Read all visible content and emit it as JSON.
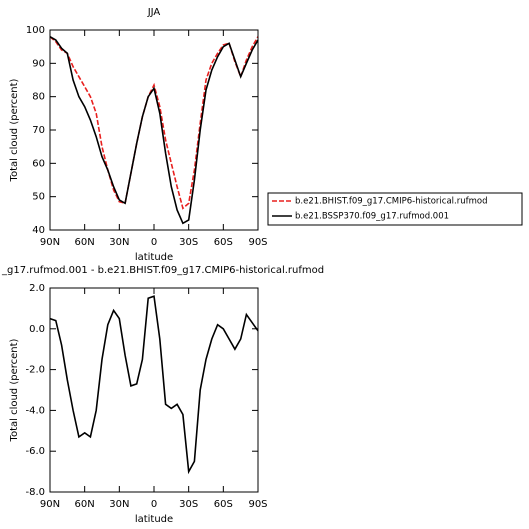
{
  "chart_data": [
    {
      "type": "line",
      "title": "JJA",
      "ylabel": "Total cloud (percent)",
      "xlabel": "latitude",
      "x": [
        90,
        85,
        80,
        75,
        70,
        65,
        60,
        55,
        50,
        45,
        40,
        35,
        30,
        25,
        20,
        15,
        10,
        5,
        0,
        -5,
        -10,
        -15,
        -20,
        -25,
        -30,
        -35,
        -40,
        -45,
        -50,
        -55,
        -60,
        -65,
        -70,
        -75,
        -80,
        -85,
        -90
      ],
      "series": [
        {
          "name": "b.e21.BHIST.f09_g17.CMIP6-historical.rufmod",
          "color": "#e8201f",
          "linestyle": "dashed",
          "values": [
            98,
            96.5,
            94,
            93,
            89,
            86,
            83,
            80,
            75,
            65,
            58,
            52,
            48.5,
            48,
            57,
            66,
            74,
            80,
            83.5,
            77,
            67,
            60,
            53,
            46.5,
            48,
            58,
            72,
            85,
            90,
            93,
            95.5,
            96,
            90.5,
            86,
            91,
            95,
            98
          ]
        },
        {
          "name": "b.e21.BSSP370.f09_g17.rufmod.001",
          "color": "#000000",
          "linestyle": "solid",
          "values": [
            98,
            97,
            94.5,
            93,
            85,
            80,
            77,
            73,
            68,
            62,
            58,
            53,
            49,
            48,
            57,
            66,
            74,
            80,
            82.5,
            75,
            63,
            53,
            46,
            42,
            43,
            55,
            70,
            82,
            88,
            92,
            95,
            96,
            91,
            86,
            90,
            94,
            97
          ]
        }
      ],
      "xlim": [
        90,
        -90
      ],
      "xticks": [
        {
          "value": 90,
          "label": "90N"
        },
        {
          "value": 60,
          "label": "60N"
        },
        {
          "value": 30,
          "label": "30N"
        },
        0,
        {
          "value": -30,
          "label": "30S"
        },
        {
          "value": -60,
          "label": "60S"
        },
        {
          "value": -90,
          "label": "90S"
        }
      ],
      "ylim": [
        40,
        100
      ],
      "yticks": [
        40,
        50,
        60,
        70,
        80,
        90,
        100
      ],
      "legend": "outside-right"
    },
    {
      "type": "line",
      "title": "_g17.rufmod.001 - b.e21.BHIST.f09_g17.CMIP6-historical.rufmod",
      "ylabel": "Total cloud (percent)",
      "xlabel": "latitude",
      "x": [
        90,
        85,
        80,
        75,
        70,
        65,
        60,
        55,
        50,
        45,
        40,
        35,
        30,
        25,
        20,
        15,
        10,
        5,
        0,
        -5,
        -10,
        -15,
        -20,
        -25,
        -30,
        -35,
        -40,
        -45,
        -50,
        -55,
        -60,
        -65,
        -70,
        -75,
        -80,
        -85,
        -90
      ],
      "values": [
        0.5,
        0.4,
        -0.8,
        -2.5,
        -4,
        -5.3,
        -5.1,
        -5.3,
        -4,
        -1.5,
        0.2,
        0.9,
        0.5,
        -1.3,
        -2.8,
        -2.7,
        -1.5,
        1.5,
        1.6,
        -0.5,
        -3.7,
        -3.9,
        -3.7,
        -4.2,
        -7,
        -6.5,
        -3,
        -1.5,
        -0.5,
        0.2,
        0,
        -0.5,
        -1,
        -0.5,
        0.7,
        0.3,
        -0.1
      ],
      "color": "#000000",
      "linestyle": "solid",
      "xlim": [
        90,
        -90
      ],
      "xticks": [
        {
          "value": 90,
          "label": "90N"
        },
        {
          "value": 60,
          "label": "60N"
        },
        {
          "value": 30,
          "label": "30N"
        },
        0,
        {
          "value": -30,
          "label": "30S"
        },
        {
          "value": -60,
          "label": "60S"
        },
        {
          "value": -90,
          "label": "90S"
        }
      ],
      "ylim": [
        -8,
        2
      ],
      "yticks": [
        {
          "value": -8,
          "label": "-8.0"
        },
        {
          "value": -6,
          "label": "-6.0"
        },
        {
          "value": -4,
          "label": "-4.0"
        },
        {
          "value": -2,
          "label": "-2.0"
        },
        {
          "value": 0,
          "label": "0.0"
        },
        {
          "value": 2,
          "label": "2.0"
        }
      ]
    }
  ]
}
